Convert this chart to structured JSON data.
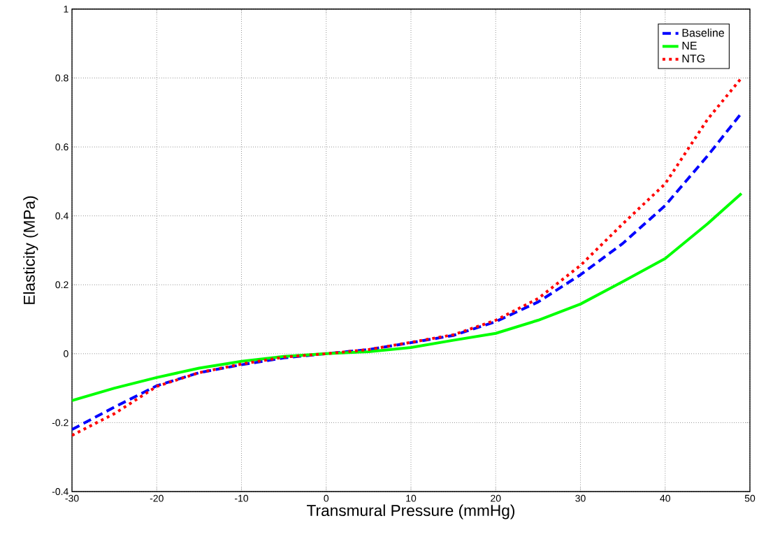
{
  "chart_data": {
    "type": "line",
    "xlabel": "Transmural Pressure (mmHg)",
    "ylabel": "Elasticity (MPa)",
    "x": [
      -30,
      -25,
      -20,
      -15,
      -10,
      -5,
      0,
      5,
      10,
      15,
      20,
      25,
      30,
      35,
      40,
      45,
      49
    ],
    "series": [
      {
        "name": "Baseline",
        "color": "#0000ff",
        "line_style": "dashed",
        "values": [
          -0.22,
          -0.155,
          -0.093,
          -0.055,
          -0.032,
          -0.012,
          0,
          0.012,
          0.032,
          0.053,
          0.093,
          0.15,
          0.229,
          0.32,
          0.43,
          0.574,
          0.698
        ]
      },
      {
        "name": "NE",
        "color": "#00ff00",
        "line_style": "solid",
        "values": [
          -0.136,
          -0.1,
          -0.069,
          -0.042,
          -0.022,
          -0.008,
          0,
          0.006,
          0.018,
          0.039,
          0.059,
          0.097,
          0.144,
          0.209,
          0.276,
          0.377,
          0.465
        ]
      },
      {
        "name": "NTG",
        "color": "#ff0000",
        "line_style": "dotted",
        "values": [
          -0.237,
          -0.174,
          -0.095,
          -0.055,
          -0.03,
          -0.01,
          0,
          0.012,
          0.033,
          0.055,
          0.097,
          0.16,
          0.256,
          0.377,
          0.493,
          0.68,
          0.8
        ]
      }
    ],
    "xlim": [
      -30,
      50
    ],
    "ylim": [
      -0.4,
      1
    ],
    "xticks": [
      -30,
      -20,
      -10,
      0,
      10,
      20,
      30,
      40,
      50
    ],
    "yticks": [
      -0.4,
      -0.2,
      0,
      0.2,
      0.4,
      0.6,
      0.8,
      1
    ],
    "grid": true,
    "legend": "top right",
    "marker": "none"
  }
}
